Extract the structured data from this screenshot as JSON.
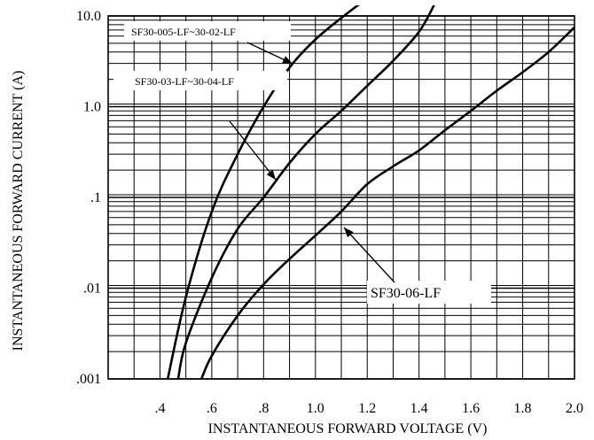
{
  "chart_data": {
    "type": "line",
    "title": "",
    "xlabel": "INSTANTANEOUS FORWARD VOLTAGE (V)",
    "ylabel": "INSTANTANEOUS FORWARD CURRENT (A)",
    "xlim": [
      0.2,
      2.0
    ],
    "ylim": [
      0.001,
      10.0
    ],
    "y_scale": "log",
    "grid": true,
    "x_ticks": [
      0.4,
      0.6,
      0.8,
      1.0,
      1.2,
      1.4,
      1.6,
      1.8,
      2.0
    ],
    "x_tick_labels": [
      ".4",
      ".6",
      ".8",
      "1.0",
      "1.2",
      "1.4",
      "1.6",
      "1.8",
      "2.0"
    ],
    "y_ticks": [
      0.001,
      0.01,
      0.1,
      1.0,
      10.0
    ],
    "y_tick_labels": [
      ".001",
      ".01",
      ".1",
      "1.0",
      "10.0"
    ],
    "series": [
      {
        "name": "SF30-005-LF~30-02-LF",
        "points": [
          [
            0.43,
            0.001
          ],
          [
            0.5,
            0.008
          ],
          [
            0.6,
            0.07
          ],
          [
            0.7,
            0.3
          ],
          [
            0.8,
            1.0
          ],
          [
            0.9,
            2.7
          ],
          [
            1.0,
            5.5
          ],
          [
            1.1,
            9.5
          ],
          [
            1.17,
            13.5
          ]
        ]
      },
      {
        "name": "SF30-03-LF~30-04-LF",
        "points": [
          [
            0.47,
            0.001
          ],
          [
            0.5,
            0.0025
          ],
          [
            0.6,
            0.013
          ],
          [
            0.7,
            0.045
          ],
          [
            0.8,
            0.1
          ],
          [
            0.9,
            0.24
          ],
          [
            1.0,
            0.5
          ],
          [
            1.1,
            0.9
          ],
          [
            1.2,
            1.7
          ],
          [
            1.3,
            3.2
          ],
          [
            1.4,
            6.7
          ],
          [
            1.46,
            13.5
          ]
        ]
      },
      {
        "name": "SF30-06-LF",
        "points": [
          [
            0.56,
            0.001
          ],
          [
            0.6,
            0.0018
          ],
          [
            0.7,
            0.005
          ],
          [
            0.8,
            0.011
          ],
          [
            0.9,
            0.021
          ],
          [
            1.0,
            0.038
          ],
          [
            1.1,
            0.07
          ],
          [
            1.2,
            0.14
          ],
          [
            1.3,
            0.22
          ],
          [
            1.4,
            0.33
          ],
          [
            1.5,
            0.55
          ],
          [
            1.6,
            0.9
          ],
          [
            1.7,
            1.5
          ],
          [
            1.8,
            2.4
          ],
          [
            1.9,
            4.0
          ],
          [
            2.0,
            7.5
          ]
        ]
      }
    ],
    "callouts": [
      {
        "label": "SF30-005-LF~30-02-LF",
        "series": 0
      },
      {
        "label": "SF30-03-LF~30-04-LF",
        "series": 1
      },
      {
        "label": "SF30-06-LF",
        "series": 2
      }
    ]
  }
}
